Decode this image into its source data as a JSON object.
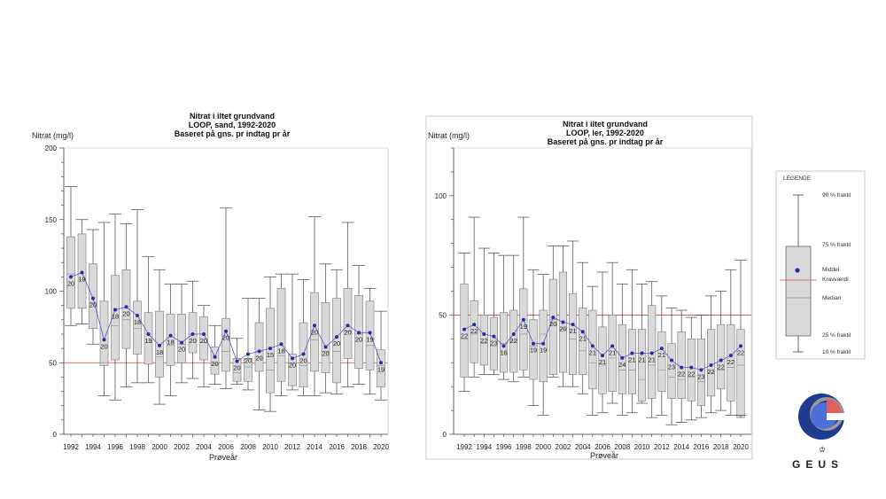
{
  "chart_data": [
    {
      "type": "boxplot",
      "title": [
        "Nitrat i iltet grundvand",
        "LOOP, sand, 1992-2020",
        "Baseret på gns. pr indtag pr år"
      ],
      "ylabel": "Nitrat (mg/l)",
      "xlabel": "Prøveår",
      "ylim": [
        0,
        200
      ],
      "yticks": [
        0,
        50,
        100,
        150,
        200
      ],
      "xticks": [
        1992,
        1994,
        1996,
        1998,
        2000,
        2002,
        2004,
        2006,
        2008,
        2010,
        2012,
        2014,
        2016,
        2018,
        2020
      ],
      "threshold": 50,
      "years": [
        1992,
        1993,
        1994,
        1995,
        1996,
        1997,
        1998,
        1999,
        2000,
        2001,
        2002,
        2003,
        2004,
        2005,
        2006,
        2007,
        2008,
        2009,
        2010,
        2011,
        2012,
        2013,
        2014,
        2015,
        2016,
        2017,
        2018,
        2019,
        2020
      ],
      "p10": [
        76,
        77,
        63,
        27,
        24,
        33,
        36,
        36,
        21,
        27,
        36,
        39,
        33,
        35,
        32,
        35,
        31,
        17,
        16,
        27,
        31,
        27,
        27,
        29,
        28,
        33,
        35,
        28,
        24
      ],
      "p25": [
        88,
        88,
        74,
        48,
        52,
        60,
        56,
        49,
        40,
        48,
        50,
        57,
        52,
        42,
        44,
        37,
        37,
        44,
        29,
        37,
        34,
        33,
        44,
        43,
        36,
        53,
        46,
        45,
        33
      ],
      "median": [
        112,
        108,
        92,
        50,
        76,
        80,
        74,
        64,
        54,
        62,
        63,
        70,
        64,
        49,
        58,
        43,
        47,
        58,
        45,
        55,
        50,
        48,
        66,
        58,
        58,
        72,
        70,
        62,
        48
      ],
      "p75": [
        138,
        140,
        119,
        93,
        111,
        115,
        93,
        85,
        86,
        84,
        84,
        85,
        82,
        61,
        81,
        53,
        53,
        78,
        88,
        102,
        56,
        78,
        99,
        92,
        95,
        102,
        97,
        93,
        59
      ],
      "p90": [
        173,
        150,
        143,
        148,
        154,
        147,
        157,
        124,
        115,
        105,
        105,
        107,
        90,
        76,
        158,
        67,
        95,
        95,
        110,
        112,
        112,
        108,
        152,
        119,
        115,
        148,
        118,
        102,
        86
      ],
      "mean": [
        110,
        113,
        95,
        66,
        87,
        89,
        83,
        70,
        62,
        69,
        64,
        70,
        70,
        54,
        72,
        51,
        56,
        58,
        60,
        63,
        53,
        56,
        76,
        61,
        68,
        76,
        71,
        71,
        50
      ],
      "counts": [
        20,
        19,
        20,
        20,
        18,
        20,
        18,
        19,
        18,
        18,
        20,
        20,
        20,
        20,
        20,
        20,
        20,
        20,
        15,
        18,
        20,
        20,
        20,
        20,
        20,
        20,
        20,
        19,
        19
      ]
    },
    {
      "type": "boxplot",
      "title": [
        "Nitrat i iltet grundvand",
        "LOOP, ler, 1992-2020",
        "Baseret på gns. pr indtag pr år"
      ],
      "ylabel": "Nitrat (mg/l)",
      "xlabel": "Prøveår",
      "ylim": [
        0,
        120
      ],
      "yticks": [
        0,
        50,
        100
      ],
      "xticks": [
        1992,
        1994,
        1996,
        1998,
        2000,
        2002,
        2004,
        2006,
        2008,
        2010,
        2012,
        2014,
        2016,
        2018,
        2020
      ],
      "threshold": 50,
      "years": [
        1992,
        1993,
        1994,
        1995,
        1996,
        1997,
        1998,
        1999,
        2000,
        2001,
        2002,
        2003,
        2004,
        2005,
        2006,
        2007,
        2008,
        2009,
        2010,
        2011,
        2012,
        2013,
        2014,
        2015,
        2016,
        2017,
        2018,
        2019,
        2020
      ],
      "p10": [
        18,
        24,
        25,
        25,
        23,
        22,
        24,
        12,
        8,
        24,
        20,
        20,
        17,
        8,
        9,
        13,
        8,
        9,
        13,
        7,
        8,
        4,
        5,
        6,
        7,
        9,
        10,
        8,
        8
      ],
      "p25": [
        24,
        30,
        29,
        27,
        26,
        26,
        27,
        23,
        22,
        25,
        26,
        25,
        25,
        19,
        17,
        18,
        17,
        17,
        14,
        15,
        18,
        15,
        15,
        14,
        12,
        16,
        19,
        14,
        7
      ],
      "median": [
        40,
        42,
        38,
        37,
        38,
        39,
        42,
        37,
        42,
        48,
        44,
        40,
        35,
        30,
        29,
        32,
        27,
        27,
        23,
        29,
        27,
        24,
        23,
        24,
        22,
        26,
        27,
        28,
        29
      ],
      "p75": [
        63,
        56,
        50,
        49,
        51,
        52,
        61,
        48,
        52,
        65,
        68,
        59,
        53,
        52,
        45,
        50,
        46,
        44,
        44,
        54,
        43,
        38,
        43,
        40,
        40,
        44,
        46,
        46,
        44
      ],
      "p90": [
        76,
        91,
        78,
        76,
        75,
        75,
        91,
        69,
        67,
        79,
        79,
        81,
        72,
        62,
        68,
        72,
        63,
        69,
        63,
        64,
        58,
        53,
        52,
        49,
        50,
        58,
        60,
        69,
        73
      ],
      "mean": [
        44,
        46,
        42,
        41,
        37,
        42,
        48,
        38,
        38,
        49,
        47,
        46,
        43,
        37,
        33,
        37,
        32,
        34,
        34,
        34,
        36,
        31,
        28,
        28,
        27,
        29,
        31,
        33,
        37
      ],
      "counts": [
        22,
        22,
        22,
        23,
        16,
        22,
        19,
        19,
        19,
        20,
        20,
        21,
        21,
        21,
        21,
        21,
        24,
        21,
        21,
        21,
        21,
        23,
        22,
        22,
        23,
        22,
        22,
        22,
        22
      ]
    }
  ],
  "legend": {
    "title": "LEGENDE",
    "p90": "90 % fraktil",
    "p75": "75 % fraktil",
    "mean": "Middel",
    "threshold": "Kravværdi",
    "median": "Median",
    "p25": "25 % fraktil",
    "p10": "10 % fraktil"
  },
  "logo": {
    "text": "GEUS",
    "colors": {
      "outer": "#1f3b8f",
      "inner": "#4f6fd8",
      "accent": "#e06060",
      "ring": "#9a9a9a"
    }
  },
  "colors": {
    "box": "#d9d9d9",
    "mean": "#2a2aa0",
    "threshold": "#e04040"
  }
}
